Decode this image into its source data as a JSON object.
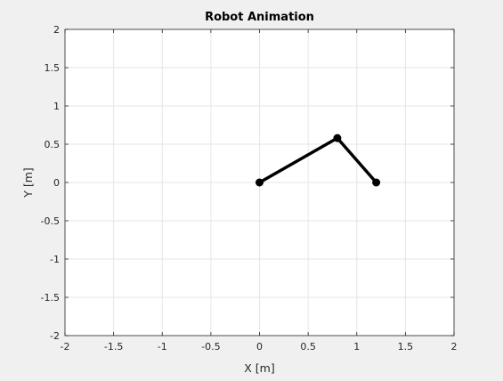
{
  "chart_data": {
    "type": "line",
    "title": "Robot Animation",
    "xlabel": "X [m]",
    "ylabel": "Y [m]",
    "xlim": [
      -2,
      2
    ],
    "ylim": [
      -2,
      2
    ],
    "xticks": [
      -2,
      -1.5,
      -1,
      -0.5,
      0,
      0.5,
      1,
      1.5,
      2
    ],
    "yticks": [
      -2,
      -1.5,
      -1,
      -0.5,
      0,
      0.5,
      1,
      1.5,
      2
    ],
    "xtick_labels": [
      "-2",
      "-1.5",
      "-1",
      "-0.5",
      "0",
      "0.5",
      "1",
      "1.5",
      "2"
    ],
    "ytick_labels": [
      "-2",
      "-1.5",
      "-1",
      "-0.5",
      "0",
      "0.5",
      "1",
      "1.5",
      "2"
    ],
    "grid": true,
    "series": [
      {
        "x": [
          0,
          0.8,
          1.2
        ],
        "y": [
          0,
          0.58,
          0
        ],
        "color": "#000000",
        "marker": "o"
      }
    ]
  }
}
